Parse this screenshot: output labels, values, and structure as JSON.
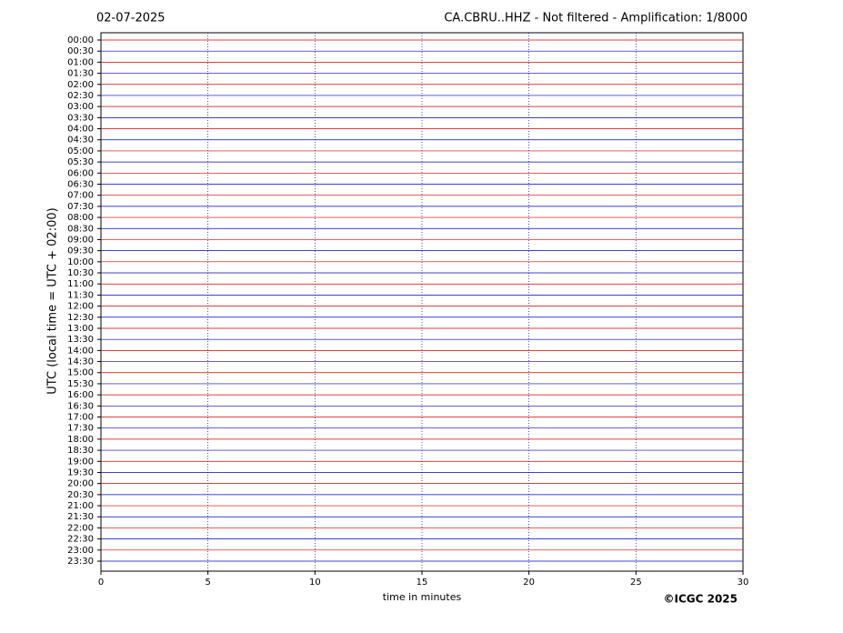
{
  "chart_data": {
    "type": "helicorder",
    "date": "02-07-2025",
    "title": "CA.CBRU..HHZ - Not filtered - Amplification: 1/8000",
    "xlabel": "time in minutes",
    "ylabel": "UTC (local time = UTC + 02:00)",
    "categories": [
      "00:00",
      "00:30",
      "01:00",
      "01:30",
      "02:00",
      "02:30",
      "03:00",
      "03:30",
      "04:00",
      "04:30",
      "05:00",
      "05:30",
      "06:00",
      "06:30",
      "07:00",
      "07:30",
      "08:00",
      "08:30",
      "09:00",
      "09:30",
      "10:00",
      "10:30",
      "11:00",
      "11:30",
      "12:00",
      "12:30",
      "13:00",
      "13:30",
      "14:00",
      "14:30",
      "15:00",
      "15:30",
      "16:00",
      "16:30",
      "17:00",
      "17:30",
      "18:00",
      "18:30",
      "19:00",
      "19:30",
      "20:00",
      "20:30",
      "21:00",
      "21:30",
      "22:00",
      "22:30",
      "23:00",
      "23:30"
    ],
    "xlim": [
      0,
      30
    ],
    "xticks": [
      0,
      5,
      10,
      15,
      20,
      25,
      30
    ],
    "grid": true,
    "colors": [
      "#d40000",
      "#0000c8"
    ]
  },
  "footer": {
    "copyright": "©ICGC 2025"
  }
}
